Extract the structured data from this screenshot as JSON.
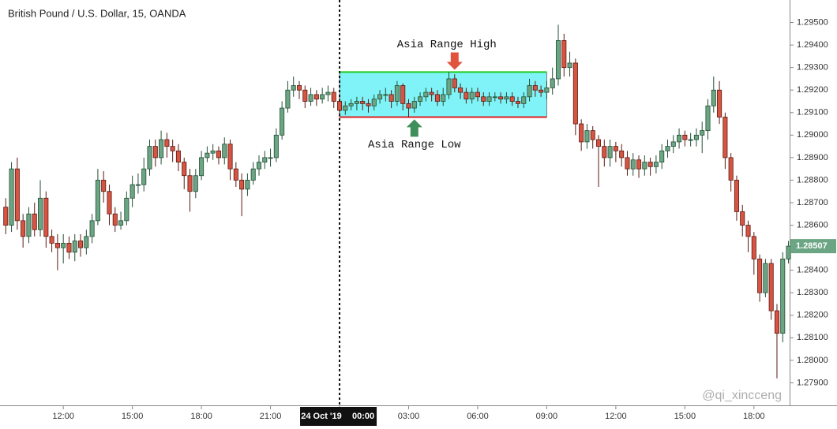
{
  "chart_data": {
    "type": "candlestick",
    "title": "British Pound / U.S. Dollar, 15, OANDA",
    "date_label": "24 Oct '19",
    "watermark": "@qi_xincceng",
    "up_color": "#6ba583",
    "down_color": "#d75442",
    "xlim": [
      -14.75,
      19.55
    ],
    "ylim": [
      1.278,
      1.296
    ],
    "xticks": [
      {
        "value": -12,
        "label": "12:00"
      },
      {
        "value": -9,
        "label": "15:00"
      },
      {
        "value": -6,
        "label": "18:00"
      },
      {
        "value": -3,
        "label": "21:00"
      },
      {
        "value": 0,
        "label": "00:00"
      },
      {
        "value": 3,
        "label": "03:00"
      },
      {
        "value": 6,
        "label": "06:00"
      },
      {
        "value": 9,
        "label": "09:00"
      },
      {
        "value": 12,
        "label": "12:00"
      },
      {
        "value": 15,
        "label": "15:00"
      },
      {
        "value": 18,
        "label": "18:00"
      }
    ],
    "yticks": [
      {
        "value": 1.279,
        "label": "1.27900"
      },
      {
        "value": 1.28,
        "label": "1.28000"
      },
      {
        "value": 1.281,
        "label": "1.28100"
      },
      {
        "value": 1.282,
        "label": "1.28200"
      },
      {
        "value": 1.283,
        "label": "1.28300"
      },
      {
        "value": 1.284,
        "label": "1.28400"
      },
      {
        "value": 1.285,
        "label": "1.28500"
      },
      {
        "value": 1.286,
        "label": "1.28600"
      },
      {
        "value": 1.287,
        "label": "1.28700"
      },
      {
        "value": 1.288,
        "label": "1.28800"
      },
      {
        "value": 1.289,
        "label": "1.28900"
      },
      {
        "value": 1.29,
        "label": "1.29000"
      },
      {
        "value": 1.291,
        "label": "1.29100"
      },
      {
        "value": 1.292,
        "label": "1.29200"
      },
      {
        "value": 1.293,
        "label": "1.29300"
      },
      {
        "value": 1.294,
        "label": "1.29400"
      },
      {
        "value": 1.295,
        "label": "1.29500"
      }
    ],
    "session_line": 0,
    "asia_range": {
      "start": 0,
      "end": 9,
      "high": 1.2928,
      "low": 1.2908,
      "fill": "#7ff3f7",
      "high_color": "#22cc22",
      "low_color": "#dd2222"
    },
    "annotations": [
      {
        "text": "Asia Range High",
        "x": 5,
        "y": 1.2929,
        "direction": "down",
        "color": "#e0533c"
      },
      {
        "text": "Asia Range Low",
        "x": 3.25,
        "y": 1.2907,
        "direction": "up",
        "color": "#3f8f5a"
      }
    ],
    "x": [
      -14.5,
      -14.25,
      -14,
      -13.75,
      -13.5,
      -13.25,
      -13,
      -12.75,
      -12.5,
      -12.25,
      -12,
      -11.75,
      -11.5,
      -11.25,
      -11,
      -10.75,
      -10.5,
      -10.25,
      -10,
      -9.75,
      -9.5,
      -9.25,
      -9,
      -8.75,
      -8.5,
      -8.25,
      -8,
      -7.75,
      -7.5,
      -7.25,
      -7,
      -6.75,
      -6.5,
      -6.25,
      -6,
      -5.75,
      -5.5,
      -5.25,
      -5,
      -4.75,
      -4.5,
      -4.25,
      -4,
      -3.75,
      -3.5,
      -3.25,
      -3,
      -2.75,
      -2.5,
      -2.25,
      -2,
      -1.75,
      -1.5,
      -1.25,
      -1,
      -0.75,
      -0.5,
      -0.25,
      0,
      0.25,
      0.5,
      0.75,
      1,
      1.25,
      1.5,
      1.75,
      2,
      2.25,
      2.5,
      2.75,
      3,
      3.25,
      3.5,
      3.75,
      4,
      4.25,
      4.5,
      4.75,
      5,
      5.25,
      5.5,
      5.75,
      6,
      6.25,
      6.5,
      6.75,
      7,
      7.25,
      7.5,
      7.75,
      8,
      8.25,
      8.5,
      8.75,
      9,
      9.25,
      9.5,
      9.75,
      10,
      10.25,
      10.5,
      10.75,
      11,
      11.25,
      11.5,
      11.75,
      12,
      12.25,
      12.5,
      12.75,
      13,
      13.25,
      13.5,
      13.75,
      14,
      14.25,
      14.5,
      14.75,
      15,
      15.25,
      15.5,
      15.75,
      16,
      16.25,
      16.5,
      16.75,
      17,
      17.25,
      17.5,
      17.75,
      18,
      18.25,
      18.5,
      18.75,
      19,
      19.25,
      19.5
    ],
    "open": [
      1.2868,
      1.286,
      1.2885,
      1.2862,
      1.2855,
      1.2865,
      1.2858,
      1.2872,
      1.2855,
      1.2852,
      1.285,
      1.2852,
      1.2848,
      1.2853,
      1.285,
      1.2855,
      1.2862,
      1.288,
      1.2875,
      1.2865,
      1.286,
      1.2862,
      1.2872,
      1.2878,
      1.2878,
      1.2885,
      1.2895,
      1.289,
      1.2898,
      1.2895,
      1.2893,
      1.2888,
      1.2882,
      1.2875,
      1.2882,
      1.289,
      1.2892,
      1.2893,
      1.289,
      1.2896,
      1.2885,
      1.288,
      1.2876,
      1.288,
      1.2885,
      1.2888,
      1.289,
      1.289,
      1.29,
      1.2912,
      1.292,
      1.2922,
      1.292,
      1.2915,
      1.2918,
      1.2916,
      1.2918,
      1.2919,
      1.2915,
      1.2911,
      1.2913,
      1.2914,
      1.2915,
      1.2914,
      1.2913,
      1.2916,
      1.2918,
      1.2918,
      1.2915,
      1.2922,
      1.2914,
      1.2912,
      1.2915,
      1.2917,
      1.2919,
      1.2918,
      1.2915,
      1.2918,
      1.2925,
      1.2921,
      1.2919,
      1.2916,
      1.2919,
      1.2917,
      1.2915,
      1.2917,
      1.2917,
      1.2916,
      1.2917,
      1.2915,
      1.2914,
      1.2917,
      1.2922,
      1.292,
      1.2919,
      1.2921,
      1.2925,
      1.2942,
      1.293,
      1.2932,
      1.2905,
      1.2897,
      1.2902,
      1.2898,
      1.2895,
      1.289,
      1.2895,
      1.2893,
      1.289,
      1.2885,
      1.2889,
      1.2885,
      1.2888,
      1.2886,
      1.2888,
      1.2893,
      1.2895,
      1.2897,
      1.29,
      1.2898,
      1.2898,
      1.29,
      1.2902,
      1.2913,
      1.292,
      1.2908,
      1.289,
      1.288,
      1.2866,
      1.286,
      1.2855,
      1.2845,
      1.283,
      1.2843,
      1.2822,
      1.2812,
      1.2845
    ],
    "high": [
      1.2872,
      1.2888,
      1.289,
      1.2865,
      1.2868,
      1.287,
      1.288,
      1.2875,
      1.2858,
      1.2856,
      1.2856,
      1.2855,
      1.2856,
      1.2856,
      1.2858,
      1.2865,
      1.2885,
      1.2884,
      1.2878,
      1.2868,
      1.2866,
      1.2875,
      1.2882,
      1.2883,
      1.289,
      1.2898,
      1.2898,
      1.2902,
      1.2901,
      1.2898,
      1.2896,
      1.289,
      1.2885,
      1.2885,
      1.2893,
      1.2895,
      1.2896,
      1.2895,
      1.2899,
      1.2898,
      1.2888,
      1.2883,
      1.2883,
      1.2888,
      1.2891,
      1.2893,
      1.2894,
      1.2903,
      1.2915,
      1.2924,
      1.2926,
      1.2924,
      1.2922,
      1.2921,
      1.292,
      1.2921,
      1.2922,
      1.2921,
      1.2917,
      1.2915,
      1.2916,
      1.2917,
      1.2917,
      1.2916,
      1.2918,
      1.292,
      1.2921,
      1.292,
      1.2924,
      1.2923,
      1.2916,
      1.2917,
      1.2919,
      1.2921,
      1.2921,
      1.292,
      1.2921,
      1.2928,
      1.2927,
      1.2923,
      1.2921,
      1.2921,
      1.2921,
      1.2919,
      1.2919,
      1.2919,
      1.2919,
      1.2919,
      1.2919,
      1.2917,
      1.2919,
      1.2925,
      1.2924,
      1.2922,
      1.2924,
      1.293,
      1.2949,
      1.2945,
      1.2937,
      1.2934,
      1.2907,
      1.2905,
      1.2904,
      1.29,
      1.2898,
      1.2898,
      1.2897,
      1.2896,
      1.2893,
      1.2892,
      1.2891,
      1.2891,
      1.289,
      1.2891,
      1.2896,
      1.2898,
      1.29,
      1.2903,
      1.2902,
      1.2901,
      1.2903,
      1.2906,
      1.2916,
      1.2926,
      1.2924,
      1.291,
      1.2892,
      1.2882,
      1.2869,
      1.2862,
      1.2857,
      1.2847,
      1.2845,
      1.2845,
      1.2825,
      1.2848,
      1.2853
    ],
    "low": [
      1.2856,
      1.2857,
      1.2858,
      1.285,
      1.2852,
      1.2855,
      1.2855,
      1.285,
      1.2848,
      1.284,
      1.2843,
      1.2845,
      1.2844,
      1.2846,
      1.2847,
      1.2852,
      1.286,
      1.287,
      1.286,
      1.2857,
      1.2858,
      1.286,
      1.2868,
      1.2874,
      1.2875,
      1.2882,
      1.2886,
      1.2887,
      1.289,
      1.2888,
      1.2884,
      1.2876,
      1.2866,
      1.2872,
      1.288,
      1.2888,
      1.2889,
      1.2887,
      1.2887,
      1.288,
      1.2877,
      1.2864,
      1.2873,
      1.2878,
      1.2882,
      1.2885,
      1.2886,
      1.2888,
      1.2898,
      1.291,
      1.2917,
      1.2916,
      1.2912,
      1.2913,
      1.2913,
      1.2914,
      1.2915,
      1.2912,
      1.2908,
      1.2909,
      1.2911,
      1.2911,
      1.2911,
      1.291,
      1.2911,
      1.2914,
      1.2915,
      1.2912,
      1.2913,
      1.2911,
      1.2908,
      1.291,
      1.2913,
      1.2915,
      1.2915,
      1.2913,
      1.2913,
      1.2916,
      1.2919,
      1.2916,
      1.2914,
      1.2914,
      1.2915,
      1.2913,
      1.2913,
      1.2915,
      1.2914,
      1.2914,
      1.2913,
      1.2912,
      1.2912,
      1.2915,
      1.2917,
      1.2917,
      1.2916,
      1.2918,
      1.2922,
      1.2926,
      1.2926,
      1.29,
      1.2893,
      1.2894,
      1.2894,
      1.2877,
      1.2886,
      1.2886,
      1.2888,
      1.2886,
      1.2882,
      1.2882,
      1.2881,
      1.2882,
      1.2882,
      1.2883,
      1.2885,
      1.289,
      1.2892,
      1.2894,
      1.2895,
      1.2895,
      1.2895,
      1.2892,
      1.2898,
      1.291,
      1.2905,
      1.2885,
      1.2875,
      1.2862,
      1.2855,
      1.2848,
      1.2838,
      1.2826,
      1.2828,
      1.2818,
      1.2792,
      1.2808,
      1.2843
    ],
    "close": [
      1.286,
      1.2885,
      1.2862,
      1.2855,
      1.2865,
      1.2858,
      1.2872,
      1.2855,
      1.2852,
      1.285,
      1.2852,
      1.2848,
      1.2853,
      1.285,
      1.2855,
      1.2862,
      1.288,
      1.2875,
      1.2865,
      1.286,
      1.2862,
      1.2872,
      1.2878,
      1.2878,
      1.2885,
      1.2895,
      1.289,
      1.2898,
      1.2895,
      1.2893,
      1.2888,
      1.2882,
      1.2875,
      1.2882,
      1.289,
      1.2892,
      1.2893,
      1.289,
      1.2896,
      1.2885,
      1.288,
      1.2876,
      1.288,
      1.2885,
      1.2888,
      1.289,
      1.289,
      1.29,
      1.2912,
      1.292,
      1.2922,
      1.292,
      1.2915,
      1.2918,
      1.2916,
      1.2918,
      1.2919,
      1.2915,
      1.2911,
      1.2913,
      1.2914,
      1.2915,
      1.2914,
      1.2913,
      1.2916,
      1.2918,
      1.2918,
      1.2915,
      1.2922,
      1.2914,
      1.2912,
      1.2915,
      1.2917,
      1.2919,
      1.2918,
      1.2915,
      1.2918,
      1.2925,
      1.2921,
      1.2919,
      1.2916,
      1.2919,
      1.2917,
      1.2915,
      1.2917,
      1.2917,
      1.2916,
      1.2917,
      1.2915,
      1.2914,
      1.2917,
      1.2922,
      1.292,
      1.2919,
      1.2921,
      1.2925,
      1.2942,
      1.293,
      1.2932,
      1.2905,
      1.2897,
      1.2902,
      1.2898,
      1.2895,
      1.289,
      1.2895,
      1.2893,
      1.289,
      1.2885,
      1.2889,
      1.2885,
      1.2888,
      1.2886,
      1.2888,
      1.2893,
      1.2895,
      1.2897,
      1.29,
      1.2898,
      1.2898,
      1.29,
      1.2902,
      1.2913,
      1.292,
      1.2908,
      1.289,
      1.288,
      1.2866,
      1.286,
      1.2855,
      1.2845,
      1.283,
      1.2843,
      1.2822,
      1.2812,
      1.2845,
      1.28507
    ]
  }
}
